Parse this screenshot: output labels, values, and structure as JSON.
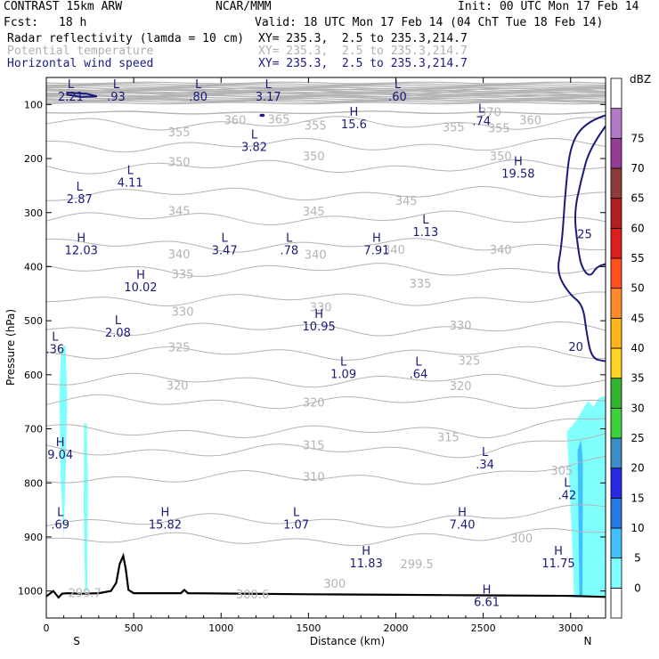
{
  "header": {
    "title": "CONTRAST 15km ARW",
    "org": "NCAR/MMM",
    "init": "Init: 00 UTC Mon 17 Feb 14",
    "fcst_label": "Fcst:",
    "fcst_value": "18 h",
    "valid": "Valid: 18 UTC Mon 17 Feb 14 (04 ChT Tue 18 Feb 14)",
    "fields": [
      {
        "name": "Radar reflectivity (lamda = 10 cm)",
        "xy": "XY= 235.3,  2.5 to 235.3,214.7"
      },
      {
        "name": "Potential temperature",
        "xy": "XY= 235.3,  2.5 to 235.3,214.7"
      },
      {
        "name": "Horizontal wind speed",
        "xy": "XY= 235.3,  2.5 to 235.3,214.7"
      }
    ]
  },
  "colors": {
    "theta": "#b4b4b4",
    "wind": "#1a1a7a",
    "terrain": "#000000",
    "refl_light": "#80ffff",
    "refl_mid": "#40c0ff"
  },
  "chart_data": {
    "type": "cross-section",
    "xlabel": "Distance (km)",
    "ylabel": "Pressure (hPa)",
    "xlim": [
      0,
      3200
    ],
    "ylim": [
      1050,
      50
    ],
    "x_ticks": [
      0,
      500,
      1000,
      1500,
      2000,
      2500,
      3000
    ],
    "y_ticks": [
      100,
      200,
      300,
      400,
      500,
      600,
      700,
      800,
      900,
      1000
    ],
    "end_labels": {
      "left": "S",
      "right": "N"
    },
    "colorbar": {
      "title": "dBZ",
      "levels": [
        "0",
        "5",
        "10",
        "15",
        "20",
        "25",
        "30",
        "35",
        "40",
        "45",
        "50",
        "55",
        "60",
        "65",
        "70",
        "75"
      ],
      "colors": [
        "#ffffff",
        "#80ffff",
        "#40c0ff",
        "#2878e6",
        "#2828e6",
        "#3c8cc8",
        "#3cd23c",
        "#32b432",
        "#ffd228",
        "#ffb41e",
        "#ff8c28",
        "#ff501e",
        "#dc1e1e",
        "#b41e1e",
        "#8c3c3c",
        "#963c96",
        "#b478c8",
        "#ffffff"
      ]
    },
    "theta_contours": {
      "levels": [
        370,
        365,
        360,
        355,
        350,
        345,
        340,
        335,
        330,
        325,
        320,
        315,
        310,
        305,
        300
      ],
      "labels": [
        {
          "text": "370",
          "x": 2540,
          "p": 115
        },
        {
          "text": "365",
          "x": 1330,
          "p": 128
        },
        {
          "text": "360",
          "x": 1080,
          "p": 130
        },
        {
          "text": "360",
          "x": 2770,
          "p": 130
        },
        {
          "text": "355",
          "x": 760,
          "p": 152
        },
        {
          "text": "355",
          "x": 1540,
          "p": 140
        },
        {
          "text": "355",
          "x": 2330,
          "p": 143
        },
        {
          "text": "355",
          "x": 2590,
          "p": 145
        },
        {
          "text": "350",
          "x": 760,
          "p": 207
        },
        {
          "text": "350",
          "x": 1530,
          "p": 197
        },
        {
          "text": "350",
          "x": 2600,
          "p": 197
        },
        {
          "text": "345",
          "x": 760,
          "p": 298
        },
        {
          "text": "345",
          "x": 1530,
          "p": 299
        },
        {
          "text": "345",
          "x": 2060,
          "p": 279
        },
        {
          "text": "340",
          "x": 760,
          "p": 378
        },
        {
          "text": "340",
          "x": 1540,
          "p": 379
        },
        {
          "text": "340",
          "x": 1990,
          "p": 370
        },
        {
          "text": "340",
          "x": 2600,
          "p": 370
        },
        {
          "text": "335",
          "x": 780,
          "p": 415
        },
        {
          "text": "335",
          "x": 2140,
          "p": 432
        },
        {
          "text": "330",
          "x": 780,
          "p": 484
        },
        {
          "text": "330",
          "x": 1570,
          "p": 476
        },
        {
          "text": "330",
          "x": 2370,
          "p": 510
        },
        {
          "text": "325",
          "x": 760,
          "p": 550
        },
        {
          "text": "325",
          "x": 2420,
          "p": 575
        },
        {
          "text": "320",
          "x": 750,
          "p": 621
        },
        {
          "text": "320",
          "x": 1530,
          "p": 652
        },
        {
          "text": "320",
          "x": 2370,
          "p": 622
        },
        {
          "text": "315",
          "x": 1530,
          "p": 731
        },
        {
          "text": "315",
          "x": 2300,
          "p": 716
        },
        {
          "text": "310",
          "x": 1530,
          "p": 790
        },
        {
          "text": "305",
          "x": 2950,
          "p": 778
        },
        {
          "text": "300",
          "x": 2720,
          "p": 903
        },
        {
          "text": "300",
          "x": 1650,
          "p": 987
        },
        {
          "text": "299.5",
          "x": 2120,
          "p": 951
        },
        {
          "text": "300.6",
          "x": 1180,
          "p": 1007
        },
        {
          "text": "299.7",
          "x": 220,
          "p": 1005
        }
      ]
    },
    "wind_contours": {
      "labels": [
        {
          "text": "25",
          "x": 3080,
          "p": 341
        },
        {
          "text": "20",
          "x": 3030,
          "p": 549
        }
      ]
    },
    "extrema": [
      {
        "type": "L",
        "value": "2.21",
        "x": 140,
        "p": 75
      },
      {
        "type": "L",
        "value": ".93",
        "x": 400,
        "p": 75
      },
      {
        "type": "L",
        "value": ".80",
        "x": 870,
        "p": 75
      },
      {
        "type": "L",
        "value": "3.17",
        "x": 1270,
        "p": 75
      },
      {
        "type": "L",
        "value": ".60",
        "x": 2010,
        "p": 75
      },
      {
        "type": "L",
        "value": ".74",
        "x": 2490,
        "p": 120
      },
      {
        "type": "H",
        "value": "15.6",
        "x": 1760,
        "p": 126
      },
      {
        "type": "L",
        "value": "3.82",
        "x": 1190,
        "p": 168
      },
      {
        "type": "H",
        "value": "19.58",
        "x": 2700,
        "p": 217
      },
      {
        "type": "L",
        "value": "4.11",
        "x": 480,
        "p": 234
      },
      {
        "type": "L",
        "value": "2.87",
        "x": 190,
        "p": 264
      },
      {
        "type": "L",
        "value": "1.13",
        "x": 2170,
        "p": 325
      },
      {
        "type": "H",
        "value": "12.03",
        "x": 200,
        "p": 359
      },
      {
        "type": "L",
        "value": "3.47",
        "x": 1020,
        "p": 359
      },
      {
        "type": "L",
        "value": ".78",
        "x": 1390,
        "p": 359
      },
      {
        "type": "H",
        "value": "7.91",
        "x": 1890,
        "p": 359
      },
      {
        "type": "H",
        "value": "10.02",
        "x": 540,
        "p": 427
      },
      {
        "type": "L",
        "value": "2.08",
        "x": 410,
        "p": 511
      },
      {
        "type": "H",
        "value": "10.95",
        "x": 1560,
        "p": 500
      },
      {
        "type": "L",
        "value": ".36",
        "x": 50,
        "p": 542
      },
      {
        "type": "L",
        "value": "1.09",
        "x": 1700,
        "p": 588
      },
      {
        "type": "L",
        "value": ".64",
        "x": 2130,
        "p": 588
      },
      {
        "type": "H",
        "value": "9.04",
        "x": 80,
        "p": 737
      },
      {
        "type": "L",
        "value": ".34",
        "x": 2510,
        "p": 755
      },
      {
        "type": "L",
        "value": ".42",
        "x": 2980,
        "p": 812
      },
      {
        "type": "L",
        "value": ".69",
        "x": 80,
        "p": 866
      },
      {
        "type": "H",
        "value": "15.82",
        "x": 680,
        "p": 866
      },
      {
        "type": "L",
        "value": "1.07",
        "x": 1430,
        "p": 866
      },
      {
        "type": "H",
        "value": "7.40",
        "x": 2380,
        "p": 866
      },
      {
        "type": "H",
        "value": "11.83",
        "x": 1830,
        "p": 938
      },
      {
        "type": "H",
        "value": "11.75",
        "x": 2930,
        "p": 938
      },
      {
        "type": "H",
        "value": "6.61",
        "x": 2520,
        "p": 1010
      }
    ]
  }
}
